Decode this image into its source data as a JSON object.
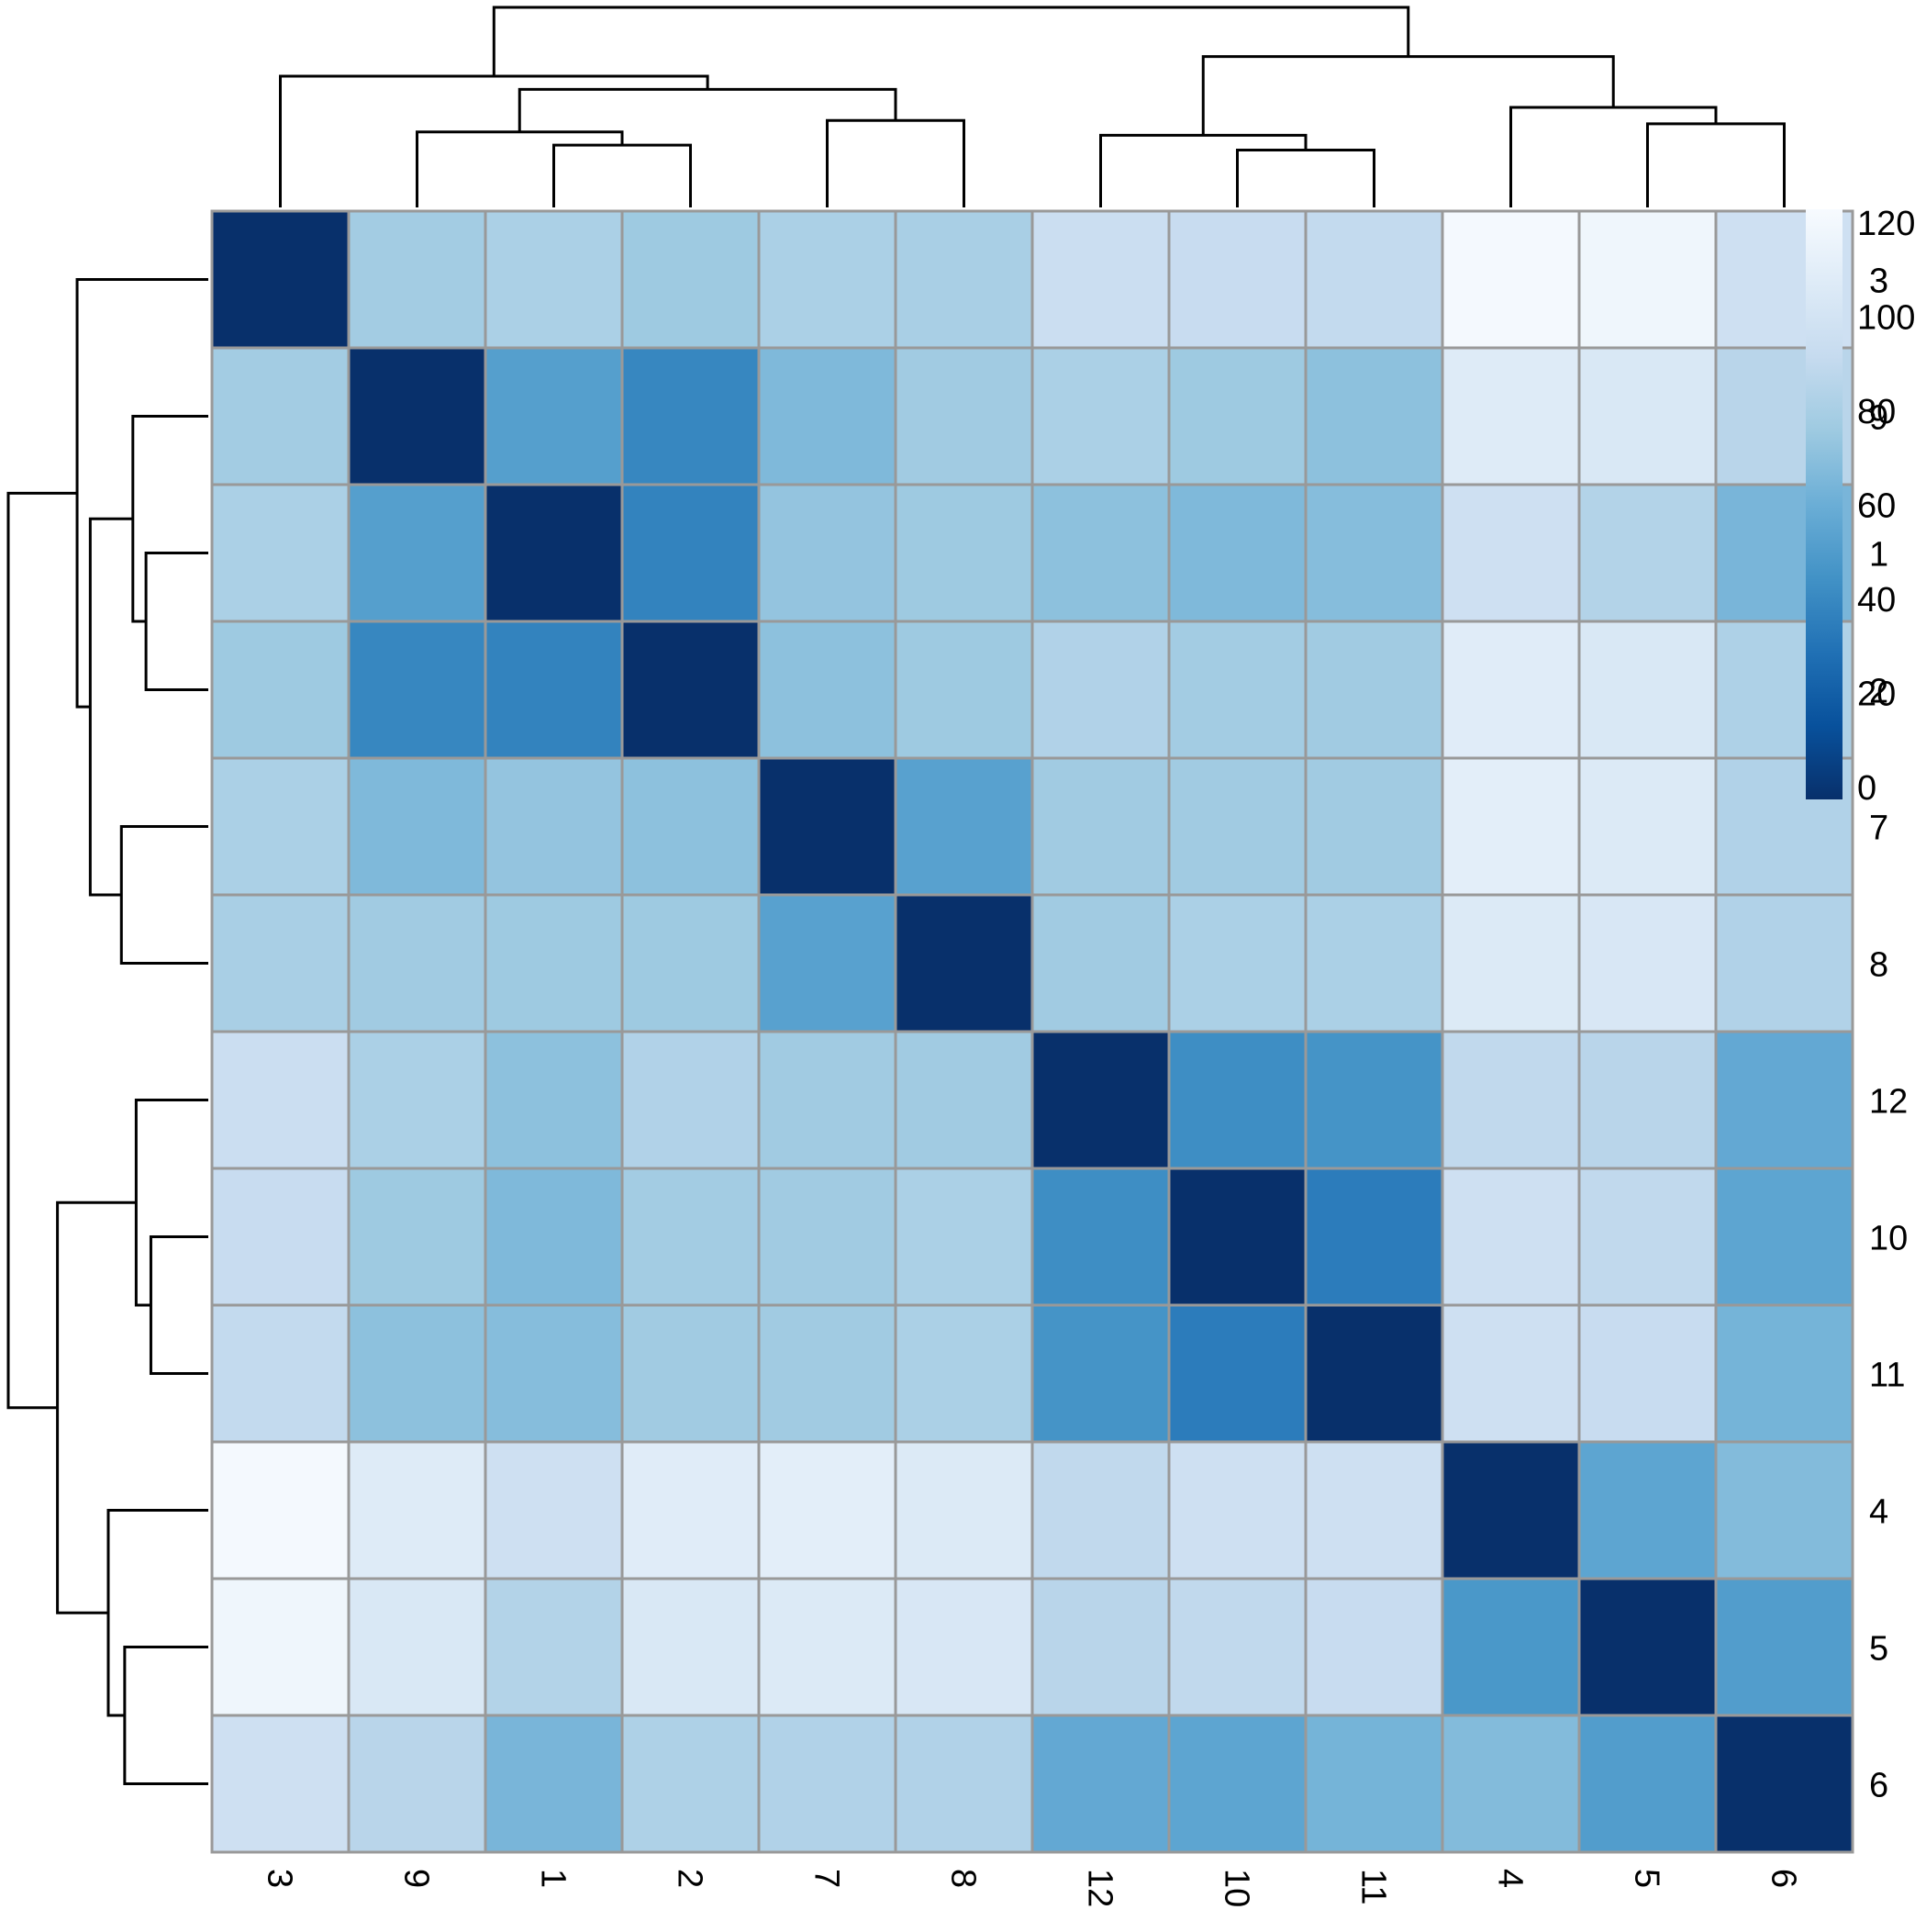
{
  "chart_data": {
    "type": "heatmap",
    "title": "",
    "xlabel": "",
    "ylabel": "",
    "row_labels": [
      "3",
      "9",
      "1",
      "2",
      "7",
      "8",
      "12",
      "10",
      "11",
      "4",
      "5",
      "6"
    ],
    "col_labels": [
      "3",
      "9",
      "1",
      "2",
      "7",
      "8",
      "12",
      "10",
      "11",
      "4",
      "5",
      "6"
    ],
    "values": [
      [
        0,
        77,
        80,
        75,
        80,
        79,
        93,
        91,
        89,
        118,
        115,
        95
      ],
      [
        77,
        0,
        52,
        40,
        66,
        76,
        80,
        75,
        70,
        105,
        102,
        85
      ],
      [
        80,
        52,
        0,
        38,
        72,
        75,
        70,
        66,
        68,
        95,
        83,
        64
      ],
      [
        75,
        40,
        38,
        0,
        70,
        75,
        82,
        77,
        76,
        106,
        102,
        81
      ],
      [
        80,
        66,
        72,
        70,
        0,
        53,
        76,
        76,
        76,
        108,
        104,
        82
      ],
      [
        79,
        76,
        75,
        75,
        53,
        0,
        76,
        80,
        80,
        104,
        101,
        82
      ],
      [
        93,
        80,
        70,
        82,
        76,
        76,
        0,
        43,
        46,
        88,
        85,
        57
      ],
      [
        91,
        75,
        66,
        77,
        76,
        80,
        43,
        0,
        35,
        95,
        88,
        55
      ],
      [
        89,
        70,
        68,
        76,
        76,
        80,
        46,
        35,
        0,
        95,
        91,
        63
      ],
      [
        118,
        105,
        95,
        106,
        108,
        104,
        88,
        95,
        95,
        0,
        55,
        67
      ],
      [
        115,
        102,
        83,
        102,
        104,
        101,
        85,
        88,
        91,
        48,
        0,
        51
      ],
      [
        95,
        85,
        64,
        81,
        82,
        82,
        57,
        55,
        63,
        67,
        51,
        0
      ]
    ],
    "color_scale": {
      "min": 0,
      "max": 120,
      "ticks": [
        0,
        20,
        40,
        60,
        80,
        100,
        120
      ],
      "colors": [
        "#08306b",
        "#08519c",
        "#2171b5",
        "#4292c6",
        "#6baed6",
        "#9ecae1",
        "#c6dbef",
        "#deebf7",
        "#f7fbff"
      ]
    },
    "cell_border_color": "#999999",
    "legend": "right",
    "col_dendrogram": [
      {
        "id": "a",
        "left": "9",
        "right": "1x2",
        "height": 46
      },
      {
        "id": "b",
        "left": "7",
        "right": "8",
        "height": 53
      },
      {
        "id": "c",
        "left": "10",
        "right": "11",
        "height": 35
      },
      {
        "id": "d",
        "left": "5",
        "right": "6",
        "height": 51
      },
      {
        "id": "e",
        "left": "1",
        "right": "2",
        "height": 38
      },
      {
        "id": "f",
        "left": "a",
        "right": "b",
        "height": 72
      },
      {
        "id": "g",
        "left": "3",
        "right": "f",
        "height": 80
      },
      {
        "id": "h",
        "left": "12",
        "right": "c",
        "height": 44
      },
      {
        "id": "i",
        "left": "4",
        "right": "d",
        "height": 61
      },
      {
        "id": "j",
        "left": "h",
        "right": "i",
        "height": 92
      },
      {
        "id": "k",
        "left": "g",
        "right": "j",
        "height": 122
      }
    ]
  }
}
